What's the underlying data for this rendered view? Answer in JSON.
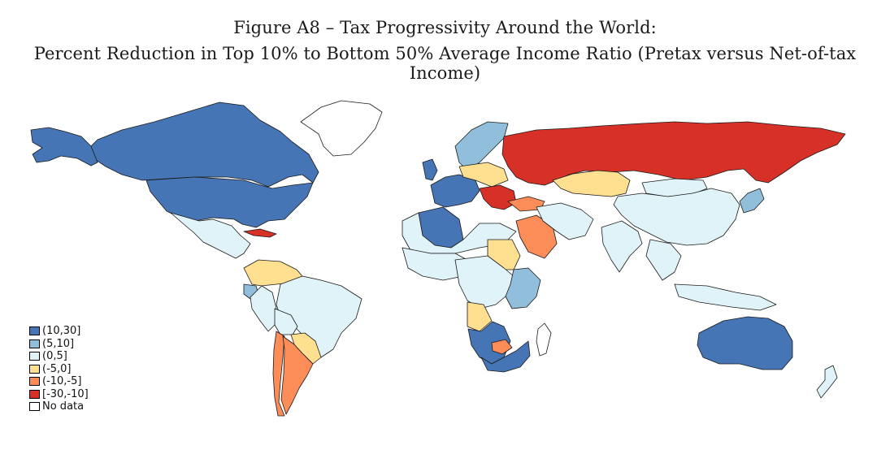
{
  "figure": {
    "title": "Figure A8 – Tax Progressivity Around the World:",
    "subtitle": "Percent Reduction in Top 10% to Bottom 50% Average Income Ratio (Pretax versus Net-of-tax Income)"
  },
  "legend": [
    {
      "label": "(10,30]",
      "color": "#4575b4",
      "key": "c10_30"
    },
    {
      "label": "(5,10]",
      "color": "#91bfdb",
      "key": "c5_10"
    },
    {
      "label": "(0,5]",
      "color": "#e0f3f8",
      "key": "c0_5"
    },
    {
      "label": "(-5,0]",
      "color": "#fee090",
      "key": "cm5_0"
    },
    {
      "label": "(-10,-5]",
      "color": "#fc8d59",
      "key": "cm10_m5"
    },
    {
      "label": "[-30,-10]",
      "color": "#d73027",
      "key": "cm30_m10"
    },
    {
      "label": "No data",
      "color": "#ffffff",
      "key": "nodata"
    }
  ],
  "regions": [
    {
      "name": "canada",
      "bin": "c10_30"
    },
    {
      "name": "usa",
      "bin": "c10_30"
    },
    {
      "name": "alaska",
      "bin": "c10_30"
    },
    {
      "name": "greenland",
      "bin": "nodata"
    },
    {
      "name": "mexico",
      "bin": "c0_5"
    },
    {
      "name": "cuba",
      "bin": "cm30_m10"
    },
    {
      "name": "colombia-venezuela",
      "bin": "cm5_0"
    },
    {
      "name": "ecuador",
      "bin": "c5_10"
    },
    {
      "name": "peru",
      "bin": "c0_5"
    },
    {
      "name": "brazil",
      "bin": "c0_5"
    },
    {
      "name": "bolivia",
      "bin": "c0_5"
    },
    {
      "name": "chile",
      "bin": "cm10_m5"
    },
    {
      "name": "argentina",
      "bin": "cm10_m5"
    },
    {
      "name": "paraguay-uruguay",
      "bin": "cm5_0"
    },
    {
      "name": "uk-ireland",
      "bin": "c10_30"
    },
    {
      "name": "scandinavia",
      "bin": "c5_10"
    },
    {
      "name": "western-europe",
      "bin": "c10_30"
    },
    {
      "name": "central-europe",
      "bin": "cm5_0"
    },
    {
      "name": "balkans",
      "bin": "cm30_m10"
    },
    {
      "name": "turkey",
      "bin": "cm10_m5"
    },
    {
      "name": "russia",
      "bin": "cm30_m10"
    },
    {
      "name": "kazakhstan",
      "bin": "cm5_0"
    },
    {
      "name": "mongolia",
      "bin": "c0_5"
    },
    {
      "name": "china",
      "bin": "c0_5"
    },
    {
      "name": "japan-korea",
      "bin": "c5_10"
    },
    {
      "name": "india",
      "bin": "c0_5"
    },
    {
      "name": "southeast-asia",
      "bin": "c0_5"
    },
    {
      "name": "indonesia",
      "bin": "c0_5"
    },
    {
      "name": "australia",
      "bin": "c10_30"
    },
    {
      "name": "new-zealand",
      "bin": "c0_5"
    },
    {
      "name": "saudi-arabia",
      "bin": "cm10_m5"
    },
    {
      "name": "middle-east",
      "bin": "c0_5"
    },
    {
      "name": "algeria",
      "bin": "c10_30"
    },
    {
      "name": "north-africa",
      "bin": "c0_5"
    },
    {
      "name": "sudan",
      "bin": "cm5_0"
    },
    {
      "name": "west-africa",
      "bin": "c0_5"
    },
    {
      "name": "central-africa",
      "bin": "c0_5"
    },
    {
      "name": "east-africa",
      "bin": "c5_10"
    },
    {
      "name": "angola",
      "bin": "cm5_0"
    },
    {
      "name": "namibia-botswana",
      "bin": "c10_30"
    },
    {
      "name": "south-africa",
      "bin": "c10_30"
    },
    {
      "name": "lesotho-region",
      "bin": "cm10_m5"
    },
    {
      "name": "madagascar",
      "bin": "nodata"
    }
  ]
}
